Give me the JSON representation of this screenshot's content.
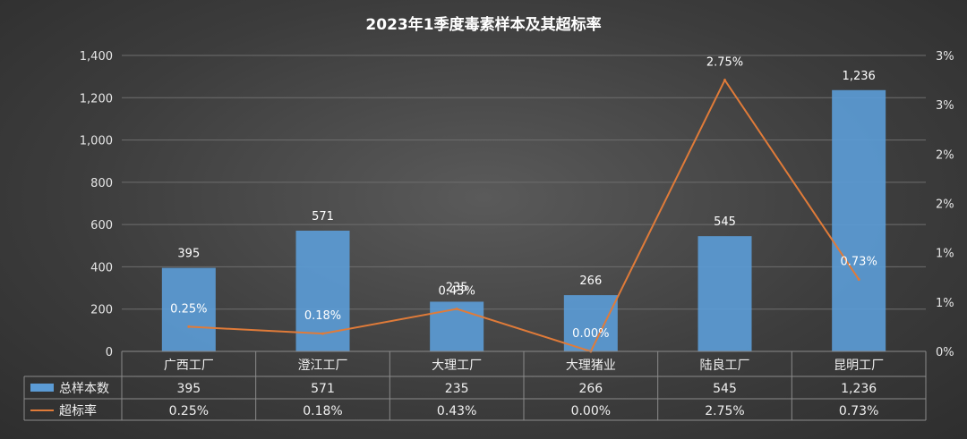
{
  "chart_data": {
    "type": "bar",
    "title": "2023年1季度毒素样本及其超标率",
    "categories": [
      "广西工厂",
      "澄江工厂",
      "大理工厂",
      "大理猪业",
      "陆良工厂",
      "昆明工厂"
    ],
    "series": [
      {
        "name": "总样本数",
        "type": "bar",
        "axis": "left",
        "values": [
          395,
          571,
          235,
          266,
          545,
          1236
        ],
        "labels": [
          "395",
          "571",
          "235",
          "266",
          "545",
          "1,236"
        ],
        "color": "#5b9bd5"
      },
      {
        "name": "超标率",
        "type": "line",
        "axis": "right",
        "values": [
          0.25,
          0.18,
          0.43,
          0.0,
          2.75,
          0.73
        ],
        "labels": [
          "0.25%",
          "0.18%",
          "0.43%",
          "0.00%",
          "2.75%",
          "0.73%"
        ],
        "color": "#e07b39"
      }
    ],
    "y_left": {
      "range": [
        0,
        1400
      ],
      "ticks": [
        0,
        200,
        400,
        600,
        800,
        1000,
        1200,
        1400
      ],
      "tick_labels": [
        "0",
        "200",
        "400",
        "600",
        "800",
        "1,000",
        "1,200",
        "1,400"
      ]
    },
    "y_right": {
      "range": [
        0,
        3
      ],
      "ticks": [
        0,
        0.5,
        1,
        1.5,
        2,
        2.5,
        3
      ],
      "tick_labels": [
        "0%",
        "1%",
        "1%",
        "2%",
        "2%",
        "3%",
        "3%"
      ]
    },
    "grid": true,
    "legend": "data-table"
  }
}
